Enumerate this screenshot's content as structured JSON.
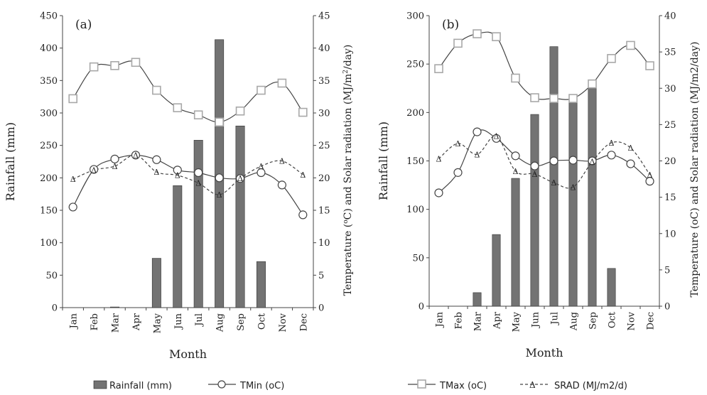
{
  "chart_data": [
    {
      "panel_label": "(a)",
      "type": "bar+line",
      "categories": [
        "Jan",
        "Feb",
        "Mar",
        "Apr",
        "May",
        "Jun",
        "Jul",
        "Aug",
        "Sep",
        "Oct",
        "Nov",
        "Dec"
      ],
      "xlabel": "Month",
      "ylabel": "Rainfall (mm)",
      "y2label_main": "Temperature (",
      "y2label_deg": "o",
      "y2label_mid": "C) and Solar radiation  (MJ/m",
      "y2label_sq": "2",
      "y2label_end": "/day)",
      "ylim": [
        0,
        450
      ],
      "yticks": [
        "0",
        "50",
        "100",
        "150",
        "200",
        "250",
        "300",
        "350",
        "400",
        "450"
      ],
      "y2lim": [
        0,
        45
      ],
      "y2ticks": [
        "0",
        "5",
        "10",
        "15",
        "20",
        "25",
        "30",
        "35",
        "40",
        "45"
      ],
      "rainfall": [
        0,
        0,
        1,
        0,
        76,
        188,
        258,
        413,
        280,
        71,
        0,
        0
      ],
      "tmin": [
        15.5,
        21.3,
        22.9,
        23.5,
        22.8,
        21.2,
        20.8,
        20.0,
        19.9,
        20.8,
        18.9,
        14.3
      ],
      "tmax": [
        32.2,
        37.1,
        37.3,
        37.8,
        33.5,
        30.8,
        29.7,
        28.6,
        30.3,
        33.5,
        34.6,
        30.1
      ],
      "srad": [
        19.8,
        21.2,
        21.8,
        23.5,
        20.9,
        20.4,
        19.2,
        17.4,
        19.9,
        21.8,
        22.6,
        20.5
      ]
    },
    {
      "panel_label": "(b)",
      "type": "bar+line",
      "categories": [
        "Jan",
        "Feb",
        "Mar",
        "Apr",
        "May",
        "Jun",
        "Jul",
        "Aug",
        "Sep",
        "Oct",
        "Nov",
        "Dec"
      ],
      "xlabel": "Month",
      "ylabel": "Rainfall (mm)",
      "y2label": "Temperature (oC) and Solar radiation (MJ/m2/day)",
      "ylim": [
        0,
        300
      ],
      "yticks": [
        "0",
        "50",
        "100",
        "150",
        "200",
        "250",
        "300"
      ],
      "y2lim": [
        0,
        40
      ],
      "y2ticks": [
        "0",
        "5",
        "10",
        "15",
        "20",
        "25",
        "30",
        "35",
        "40"
      ],
      "rainfall": [
        0,
        0,
        14,
        74,
        132,
        198,
        268,
        212,
        233,
        39,
        0,
        0
      ],
      "tmin": [
        15.6,
        18.4,
        24.0,
        23.1,
        20.7,
        19.3,
        20.0,
        20.1,
        20.0,
        20.8,
        19.6,
        17.2
      ],
      "tmax": [
        32.7,
        36.2,
        37.5,
        37.1,
        31.4,
        28.7,
        28.6,
        28.6,
        30.6,
        34.1,
        35.9,
        33.1
      ],
      "srad": [
        20.3,
        22.4,
        20.9,
        23.4,
        18.6,
        18.2,
        17.0,
        16.4,
        19.9,
        22.5,
        21.8,
        18.1
      ]
    }
  ],
  "legend": {
    "rainfall": "Rainfall (mm)",
    "tmin": "TMin (oC)",
    "tmax": "TMax (oC)",
    "srad": "SRAD (MJ/m2/d)",
    "srad_marker": "Δ"
  },
  "colors": {
    "bar": "#737373",
    "line": "#444444",
    "tmax_marker": "#a8a8a8",
    "srad_marker": "#666666"
  }
}
